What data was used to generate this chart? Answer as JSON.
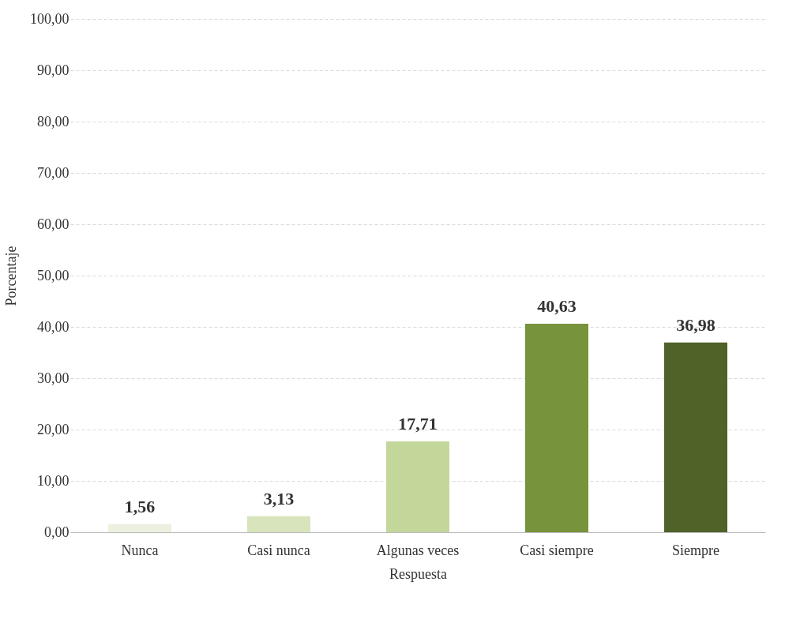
{
  "chart_data": {
    "type": "bar",
    "xlabel": "Respuesta",
    "ylabel": "Porcentaje",
    "categories": [
      "Nunca",
      "Casi nunca",
      "Algunas veces",
      "Casi siempre",
      "Siempre"
    ],
    "values": [
      1.56,
      3.13,
      17.71,
      40.63,
      36.98
    ],
    "colors": [
      "#ebf1de",
      "#d8e4bc",
      "#c4d79b",
      "#77933c",
      "#4f6228"
    ],
    "value_labels": [
      "1,56",
      "3,13",
      "17,71",
      "40,63",
      "36,98"
    ],
    "ylim": [
      0,
      100
    ],
    "yticks": [
      {
        "value": 0,
        "label": "0,00"
      },
      {
        "value": 10,
        "label": "10,00"
      },
      {
        "value": 20,
        "label": "20,00"
      },
      {
        "value": 30,
        "label": "30,00"
      },
      {
        "value": 40,
        "label": "40,00"
      },
      {
        "value": 50,
        "label": "50,00"
      },
      {
        "value": 60,
        "label": "60,00"
      },
      {
        "value": 70,
        "label": "70,00"
      },
      {
        "value": 80,
        "label": "80,00"
      },
      {
        "value": 90,
        "label": "90,00"
      },
      {
        "value": 100,
        "label": "100,00"
      }
    ],
    "grid": "y"
  }
}
